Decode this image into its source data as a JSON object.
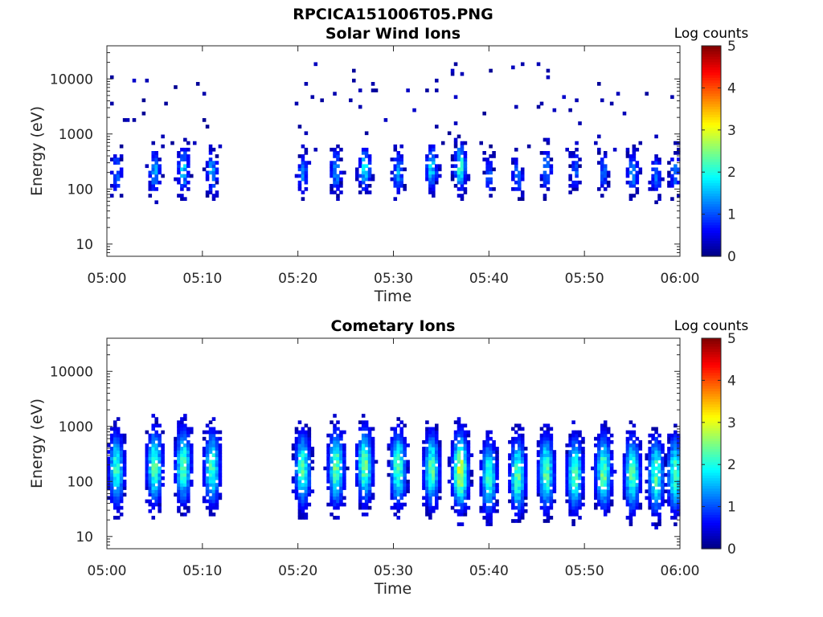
{
  "figure": {
    "title": "RPCICA151006T05.PNG"
  },
  "chart_data": [
    {
      "type": "heatmap",
      "title": "Solar Wind Ions",
      "xlabel": "Time",
      "ylabel": "Energy (eV)",
      "x_ticks": [
        "05:00",
        "05:10",
        "05:20",
        "05:30",
        "05:40",
        "05:50",
        "06:00"
      ],
      "x_range": [
        "05:00",
        "06:00"
      ],
      "y_scale": "log",
      "y_ticks": [
        "10",
        "100",
        "1000",
        "10000"
      ],
      "ylim": [
        6,
        40000
      ],
      "colorbar": {
        "label": "Log counts",
        "ticks": [
          "0",
          "1",
          "2",
          "3",
          "4",
          "5"
        ],
        "range": [
          0,
          5
        ],
        "colormap": "jet"
      },
      "data_gap": [
        "05:12",
        "05:19"
      ],
      "bursts": [
        {
          "t": "05:01",
          "peak_eV": 200,
          "peak_log_counts": 1.3
        },
        {
          "t": "05:05",
          "peak_eV": 210,
          "peak_log_counts": 1.6
        },
        {
          "t": "05:08",
          "peak_eV": 230,
          "peak_log_counts": 1.8
        },
        {
          "t": "05:11",
          "peak_eV": 210,
          "peak_log_counts": 1.5
        },
        {
          "t": "05:20.5",
          "peak_eV": 180,
          "peak_log_counts": 1.3
        },
        {
          "t": "05:24",
          "peak_eV": 220,
          "peak_log_counts": 1.5
        },
        {
          "t": "05:27",
          "peak_eV": 230,
          "peak_log_counts": 1.9
        },
        {
          "t": "05:30.5",
          "peak_eV": 200,
          "peak_log_counts": 1.5
        },
        {
          "t": "05:34",
          "peak_eV": 240,
          "peak_log_counts": 1.8
        },
        {
          "t": "05:37",
          "peak_eV": 260,
          "peak_log_counts": 2.2
        },
        {
          "t": "05:40",
          "peak_eV": 180,
          "peak_log_counts": 1.2
        },
        {
          "t": "05:43",
          "peak_eV": 170,
          "peak_log_counts": 1.3
        },
        {
          "t": "05:46",
          "peak_eV": 230,
          "peak_log_counts": 1.4
        },
        {
          "t": "05:49",
          "peak_eV": 210,
          "peak_log_counts": 1.2
        },
        {
          "t": "05:52",
          "peak_eV": 220,
          "peak_log_counts": 1.2
        },
        {
          "t": "05:55",
          "peak_eV": 200,
          "peak_log_counts": 1.5
        },
        {
          "t": "05:57.5",
          "peak_eV": 180,
          "peak_log_counts": 1.2
        },
        {
          "t": "05:59.5",
          "peak_eV": 200,
          "peak_log_counts": 1.3
        }
      ]
    },
    {
      "type": "heatmap",
      "title": "Cometary Ions",
      "xlabel": "Time",
      "ylabel": "Energy (eV)",
      "x_ticks": [
        "05:00",
        "05:10",
        "05:20",
        "05:30",
        "05:40",
        "05:50",
        "06:00"
      ],
      "x_range": [
        "05:00",
        "06:00"
      ],
      "y_scale": "log",
      "y_ticks": [
        "10",
        "100",
        "1000",
        "10000"
      ],
      "ylim": [
        6,
        40000
      ],
      "colorbar": {
        "label": "Log counts",
        "ticks": [
          "0",
          "1",
          "2",
          "3",
          "4",
          "5"
        ],
        "range": [
          0,
          5
        ],
        "colormap": "jet"
      },
      "data_gap": [
        "05:12",
        "05:19"
      ],
      "bursts": [
        {
          "t": "05:01",
          "peak_eV": 170,
          "peak_log_counts": 2.1
        },
        {
          "t": "05:05",
          "peak_eV": 190,
          "peak_log_counts": 2.3
        },
        {
          "t": "05:08",
          "peak_eV": 200,
          "peak_log_counts": 2.3
        },
        {
          "t": "05:11",
          "peak_eV": 180,
          "peak_log_counts": 2.2
        },
        {
          "t": "05:20.5",
          "peak_eV": 170,
          "peak_log_counts": 2.2
        },
        {
          "t": "05:24",
          "peak_eV": 180,
          "peak_log_counts": 2.4
        },
        {
          "t": "05:27",
          "peak_eV": 200,
          "peak_log_counts": 2.4
        },
        {
          "t": "05:30.5",
          "peak_eV": 180,
          "peak_log_counts": 2.3
        },
        {
          "t": "05:34",
          "peak_eV": 170,
          "peak_log_counts": 2.3
        },
        {
          "t": "05:37",
          "peak_eV": 160,
          "peak_log_counts": 2.9
        },
        {
          "t": "05:40",
          "peak_eV": 120,
          "peak_log_counts": 2.1
        },
        {
          "t": "05:43",
          "peak_eV": 130,
          "peak_log_counts": 2.3
        },
        {
          "t": "05:46",
          "peak_eV": 150,
          "peak_log_counts": 2.3
        },
        {
          "t": "05:49",
          "peak_eV": 140,
          "peak_log_counts": 2.3
        },
        {
          "t": "05:52",
          "peak_eV": 150,
          "peak_log_counts": 2.4
        },
        {
          "t": "05:55",
          "peak_eV": 140,
          "peak_log_counts": 2.3
        },
        {
          "t": "05:57.5",
          "peak_eV": 130,
          "peak_log_counts": 2.3
        },
        {
          "t": "05:59.5",
          "peak_eV": 140,
          "peak_log_counts": 2.3
        }
      ]
    }
  ]
}
